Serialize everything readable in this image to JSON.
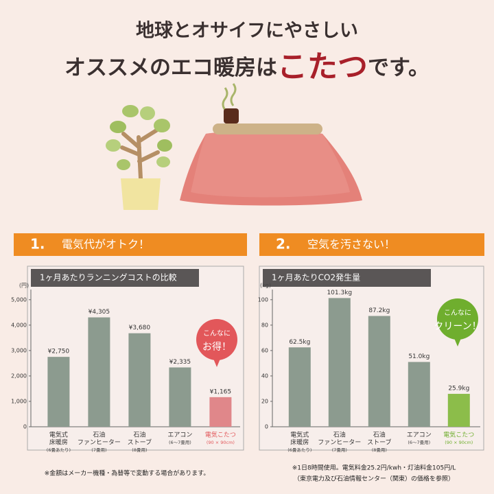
{
  "header": {
    "title_line1": "地球とオサイフにやさしい",
    "title_line2": [
      "オススメのエコ暖房は",
      "こたつ",
      "です。"
    ]
  },
  "chart_data": [
    {
      "type": "bar",
      "section_number": "1.",
      "section_title": "電気代がオトク！",
      "title": "1ヶ月あたりランニングコストの比較",
      "y_unit": "(円)",
      "categories": [
        [
          "電気式",
          "床暖房"
        ],
        [
          "石油",
          "ファンヒーター"
        ],
        [
          "石油",
          "ストーブ"
        ],
        [
          "エアコン"
        ],
        [
          "電気こたつ"
        ]
      ],
      "category_notes": [
        "(6畳あたり)",
        "(7畳用)",
        "(8畳用)",
        "(6〜7畳用)",
        "(90 × 90cm)"
      ],
      "values": [
        2750,
        4305,
        3680,
        2335,
        1165
      ],
      "value_labels": [
        "¥2,750",
        "¥4,305",
        "¥3,680",
        "¥2,335",
        "¥1,165"
      ],
      "colors": [
        "#8c9b8f",
        "#8c9b8f",
        "#8c9b8f",
        "#8c9b8f",
        "#e0878a"
      ],
      "ylim": [
        0,
        5400
      ],
      "yticks": [
        0,
        {
          "value": 1000,
          "label": "1,000"
        },
        {
          "value": 2000,
          "label": "2,000"
        },
        {
          "value": 3000,
          "label": "3,000"
        },
        {
          "value": 4000,
          "label": "4,000"
        },
        {
          "value": 5000,
          "label": "5,000"
        }
      ],
      "annotation": {
        "lines": [
          "こんなに",
          "お得！"
        ],
        "color": "#e2575a"
      },
      "footnotes": [
        "※金額はメーカー機種・為替等で変動する場合があります。"
      ]
    },
    {
      "type": "bar",
      "section_number": "2.",
      "section_title": "空気を汚さない！",
      "title": "1ヶ月あたりCO2発生量",
      "y_unit": "(kg)",
      "categories": [
        [
          "電気式",
          "床暖房"
        ],
        [
          "石油",
          "ファンヒーター"
        ],
        [
          "石油",
          "ストーブ"
        ],
        [
          "エアコン"
        ],
        [
          "電気こたつ"
        ]
      ],
      "category_notes": [
        "(6畳あたり)",
        "(7畳用)",
        "(8畳用)",
        "(6〜7畳用)",
        "(90 × 90cm)"
      ],
      "values": [
        62.5,
        101.3,
        87.2,
        51.0,
        25.9
      ],
      "value_labels": [
        "62.5kg",
        "101.3kg",
        "87.2kg",
        "51.0kg",
        "25.9kg"
      ],
      "colors": [
        "#8c9b8f",
        "#8c9b8f",
        "#8c9b8f",
        "#8c9b8f",
        "#8cbd4a"
      ],
      "ylim": [
        0,
        108
      ],
      "yticks": [
        0,
        20,
        40,
        60,
        80,
        100
      ],
      "annotation": {
        "lines": [
          "こんなに",
          "クリーン！"
        ],
        "color": "#6fae2e"
      },
      "footnotes": [
        "※1日8時間使用。電気料金25.2円/kwh・灯油料金105円/L",
        "（東京電力及び石油情報センター（関東）の価格を参照）"
      ]
    }
  ]
}
